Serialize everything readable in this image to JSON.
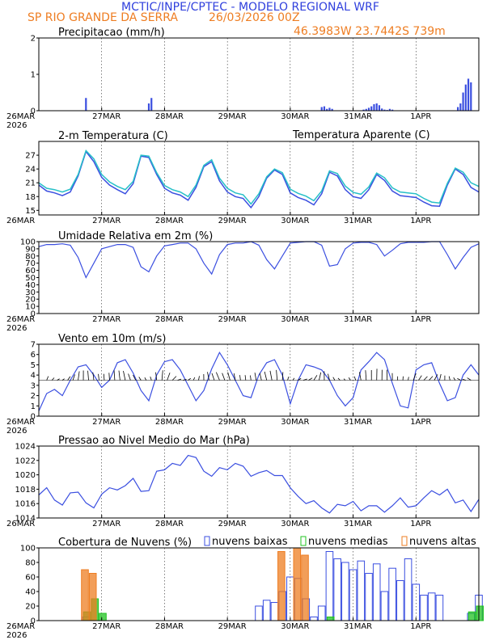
{
  "header": {
    "title": "MCTIC/INPE/CPTEC - MODELO REGIONAL WRF",
    "location": "SP RIO GRANDE DA SERRA",
    "run": "26/03/2026 00Z",
    "coords": "46.3983W 23.7442S 739m"
  },
  "colors": {
    "blue": "#3b4fe0",
    "cyan": "#27c0c8",
    "orange": "#ee7d22",
    "green": "#22c322",
    "title_blue": "#3040dd"
  },
  "time_axis": {
    "days": [
      "26MAR",
      "27MAR",
      "28MAR",
      "29MAR",
      "30MAR",
      "31MAR",
      "1APR"
    ],
    "year": "2026",
    "hours_total": 168
  },
  "chart_data": [
    {
      "id": "precip",
      "type": "bar",
      "title": "Precipitacao (mm/h)",
      "ylim": [
        0,
        2
      ],
      "yticks": [
        0,
        1,
        2
      ],
      "x_hours": [
        18,
        42,
        43,
        108,
        109,
        110,
        111,
        112,
        124,
        125,
        126,
        127,
        128,
        129,
        130,
        131,
        132,
        133,
        134,
        135,
        160,
        161,
        162,
        163,
        164,
        165
      ],
      "values": [
        0.35,
        0.2,
        0.35,
        0.1,
        0.12,
        0.05,
        0.08,
        0.05,
        0.03,
        0.05,
        0.08,
        0.12,
        0.18,
        0.2,
        0.15,
        0.06,
        0.03,
        0.02,
        0.05,
        0.03,
        0.1,
        0.2,
        0.5,
        0.72,
        0.88,
        0.78
      ]
    },
    {
      "id": "temp",
      "type": "line",
      "title": "2-m Temperatura (C)",
      "legend": "Temperatura Aparente (C)",
      "ylim": [
        14,
        30
      ],
      "yticks": [
        15,
        18,
        21,
        24,
        27
      ],
      "series": [
        {
          "name": "2-m Temperatura (C)",
          "x": [
            0,
            3,
            6,
            9,
            12,
            15,
            18,
            21,
            24,
            27,
            30,
            33,
            36,
            39,
            42,
            45,
            48,
            51,
            54,
            57,
            60,
            63,
            66,
            69,
            72,
            75,
            78,
            81,
            84,
            87,
            90,
            93,
            96,
            99,
            102,
            105,
            108,
            111,
            114,
            117,
            120,
            123,
            126,
            129,
            132,
            135,
            138,
            141,
            144,
            147,
            150,
            153,
            156,
            159,
            162,
            165,
            168
          ],
          "values": [
            20.5,
            19.2,
            18.8,
            18.2,
            19,
            22.5,
            27.8,
            25.6,
            22.2,
            20.5,
            19.5,
            18.6,
            20.8,
            26.8,
            26.5,
            22.8,
            19.8,
            18.8,
            18.3,
            17.2,
            20,
            24.5,
            25.6,
            21.4,
            19,
            18,
            17.6,
            15.6,
            18,
            22,
            23.8,
            22.8,
            18.8,
            17.8,
            17.2,
            16.2,
            18.6,
            23.3,
            22.5,
            19.5,
            18,
            17.6,
            19.5,
            22.8,
            21.5,
            19.2,
            18.2,
            18,
            17.8,
            16.8,
            16,
            15.9,
            20.5,
            24,
            22.8,
            20,
            19
          ]
        },
        {
          "name": "Temperatura Aparente (C)",
          "x": [
            0,
            3,
            6,
            9,
            12,
            15,
            18,
            21,
            24,
            27,
            30,
            33,
            36,
            39,
            42,
            45,
            48,
            51,
            54,
            57,
            60,
            63,
            66,
            69,
            72,
            75,
            78,
            81,
            84,
            87,
            90,
            93,
            96,
            99,
            102,
            105,
            108,
            111,
            114,
            117,
            120,
            123,
            126,
            129,
            132,
            135,
            138,
            141,
            144,
            147,
            150,
            153,
            156,
            159,
            162,
            165,
            168
          ],
          "values": [
            21,
            19.8,
            19.5,
            19,
            19.6,
            22.8,
            28,
            26.2,
            22.8,
            21.2,
            20.2,
            19.5,
            21.3,
            27,
            26.8,
            23.2,
            20.4,
            19.5,
            19,
            18,
            20.5,
            24.8,
            26,
            22,
            19.8,
            18.8,
            18.4,
            16.4,
            18.6,
            22.3,
            24,
            23.2,
            19.6,
            18.7,
            18.1,
            17.1,
            19.2,
            23.6,
            23,
            20.3,
            18.9,
            18.5,
            20.1,
            23.1,
            22.1,
            19.9,
            19,
            18.8,
            18.6,
            17.6,
            16.8,
            16.6,
            20.9,
            24.2,
            23.3,
            21,
            20.2
          ]
        }
      ]
    },
    {
      "id": "rh",
      "type": "line",
      "title": "Umidade Relativa em 2m (%)",
      "ylim": [
        0,
        100
      ],
      "yticks": [
        0,
        10,
        20,
        30,
        40,
        50,
        60,
        70,
        80,
        90,
        100
      ],
      "x": [
        0,
        3,
        6,
        9,
        12,
        15,
        18,
        21,
        24,
        27,
        30,
        33,
        36,
        39,
        42,
        45,
        48,
        51,
        54,
        57,
        60,
        63,
        66,
        69,
        72,
        75,
        78,
        81,
        84,
        87,
        90,
        93,
        96,
        99,
        102,
        105,
        108,
        111,
        114,
        117,
        120,
        123,
        126,
        129,
        132,
        135,
        138,
        141,
        144,
        147,
        150,
        153,
        156,
        159,
        162,
        165,
        168
      ],
      "values": [
        93,
        96,
        96,
        97,
        95,
        78,
        50,
        70,
        90,
        93,
        96,
        96,
        92,
        65,
        58,
        80,
        94,
        96,
        98,
        98,
        90,
        70,
        55,
        82,
        96,
        98,
        98,
        100,
        95,
        75,
        62,
        80,
        98,
        99,
        100,
        100,
        95,
        66,
        68,
        90,
        98,
        99,
        99,
        96,
        80,
        88,
        97,
        99,
        99,
        99,
        100,
        100,
        82,
        62,
        78,
        92,
        97
      ]
    },
    {
      "id": "wind",
      "type": "line",
      "title": "Vento em 10m (m/s)",
      "ylim": [
        0,
        7
      ],
      "yticks": [
        0,
        1,
        2,
        3,
        4,
        5,
        6,
        7
      ],
      "x": [
        0,
        3,
        6,
        9,
        12,
        15,
        18,
        21,
        24,
        27,
        30,
        33,
        36,
        39,
        42,
        45,
        48,
        51,
        54,
        57,
        60,
        63,
        66,
        69,
        72,
        75,
        78,
        81,
        84,
        87,
        90,
        93,
        96,
        99,
        102,
        105,
        108,
        111,
        114,
        117,
        120,
        123,
        126,
        129,
        132,
        135,
        138,
        141,
        144,
        147,
        150,
        153,
        156,
        159,
        162,
        165,
        168
      ],
      "values": [
        0.5,
        2.2,
        2.6,
        2.0,
        3.5,
        4.8,
        5.0,
        4.0,
        2.8,
        3.5,
        5.2,
        5.5,
        4.2,
        2.5,
        1.5,
        4.0,
        5.3,
        5.5,
        4.5,
        3.0,
        1.5,
        2.5,
        4.6,
        6.2,
        5.0,
        3.5,
        2.0,
        1.8,
        4.0,
        5.2,
        5.5,
        4.0,
        1.2,
        3.5,
        5.0,
        4.8,
        4.5,
        3.5,
        2.0,
        1.0,
        1.8,
        4.5,
        5.3,
        6.2,
        5.5,
        3.2,
        1.0,
        0.8,
        4.5,
        5.0,
        5.2,
        3.2,
        1.5,
        1.8,
        4.0,
        5.0,
        4.0
      ]
    },
    {
      "id": "slp",
      "type": "line",
      "title": "Pressao ao Nivel Medio do Mar (hPa)",
      "ylim": [
        1014,
        1024
      ],
      "yticks": [
        1014,
        1016,
        1018,
        1020,
        1022,
        1024
      ],
      "x": [
        0,
        3,
        6,
        9,
        12,
        15,
        18,
        21,
        24,
        27,
        30,
        33,
        36,
        39,
        42,
        45,
        48,
        51,
        54,
        57,
        60,
        63,
        66,
        69,
        72,
        75,
        78,
        81,
        84,
        87,
        90,
        93,
        96,
        99,
        102,
        105,
        108,
        111,
        114,
        117,
        120,
        123,
        126,
        129,
        132,
        135,
        138,
        141,
        144,
        147,
        150,
        153,
        156,
        159,
        162,
        165,
        168
      ],
      "values": [
        1017.2,
        1018.2,
        1016.5,
        1015.8,
        1017.5,
        1017.6,
        1016.1,
        1015.4,
        1017.3,
        1018.2,
        1017.9,
        1018.5,
        1019.5,
        1017.7,
        1017.8,
        1020.5,
        1020.7,
        1021.6,
        1021.3,
        1022.7,
        1022.4,
        1020.5,
        1019.8,
        1021.0,
        1020.7,
        1021.6,
        1021.2,
        1019.8,
        1020.3,
        1020.6,
        1019.9,
        1019.9,
        1018.2,
        1017.0,
        1016.0,
        1016.4,
        1015.4,
        1014.7,
        1015.9,
        1015.7,
        1016.3,
        1015.0,
        1015.7,
        1015.7,
        1014.8,
        1015.7,
        1016.8,
        1015.5,
        1015.7,
        1016.8,
        1017.8,
        1017.2,
        1018.0,
        1016.1,
        1016.5,
        1014.9,
        1016.6
      ]
    },
    {
      "id": "clouds",
      "type": "bar",
      "title": "Cobertura de Nuvens (%)",
      "legend": [
        "nuvens baixas",
        "nuvens medias",
        "nuvens altas"
      ],
      "ylim": [
        0,
        100
      ],
      "yticks": [
        0,
        20,
        40,
        60,
        80,
        100
      ],
      "x": [
        0,
        3,
        6,
        9,
        12,
        15,
        18,
        21,
        24,
        27,
        30,
        33,
        36,
        39,
        42,
        45,
        48,
        51,
        54,
        57,
        60,
        63,
        66,
        69,
        72,
        75,
        78,
        81,
        84,
        87,
        90,
        93,
        96,
        99,
        102,
        105,
        108,
        111,
        114,
        117,
        120,
        123,
        126,
        129,
        132,
        135,
        138,
        141,
        144,
        147,
        150,
        153,
        156,
        159,
        162,
        165,
        168
      ],
      "series": [
        {
          "name": "nuvens baixas",
          "values": [
            0,
            0,
            0,
            0,
            0,
            0,
            5,
            0,
            0,
            0,
            0,
            0,
            0,
            0,
            0,
            0,
            0,
            0,
            0,
            0,
            0,
            0,
            0,
            0,
            0,
            0,
            0,
            0,
            20,
            28,
            25,
            40,
            60,
            58,
            30,
            5,
            20,
            95,
            85,
            80,
            70,
            82,
            65,
            78,
            40,
            72,
            55,
            85,
            50,
            35,
            38,
            35,
            0,
            0,
            0,
            10,
            35
          ]
        },
        {
          "name": "nuvens medias",
          "values": [
            0,
            0,
            0,
            0,
            0,
            0,
            12,
            30,
            10,
            0,
            0,
            0,
            0,
            0,
            0,
            0,
            0,
            0,
            0,
            0,
            0,
            0,
            0,
            0,
            0,
            0,
            0,
            0,
            0,
            0,
            0,
            0,
            0,
            0,
            0,
            0,
            0,
            5,
            0,
            0,
            0,
            0,
            0,
            0,
            0,
            0,
            0,
            0,
            0,
            0,
            0,
            0,
            0,
            0,
            0,
            12,
            20
          ]
        },
        {
          "name": "nuvens altas",
          "values": [
            0,
            0,
            0,
            0,
            0,
            0,
            70,
            65,
            0,
            0,
            0,
            0,
            0,
            0,
            0,
            0,
            0,
            0,
            0,
            0,
            0,
            0,
            0,
            0,
            0,
            0,
            0,
            0,
            0,
            0,
            0,
            95,
            0,
            100,
            90,
            0,
            0,
            0,
            0,
            0,
            0,
            0,
            0,
            0,
            0,
            0,
            0,
            0,
            0,
            0,
            0,
            0,
            0,
            0,
            0,
            0,
            0
          ]
        }
      ]
    }
  ]
}
